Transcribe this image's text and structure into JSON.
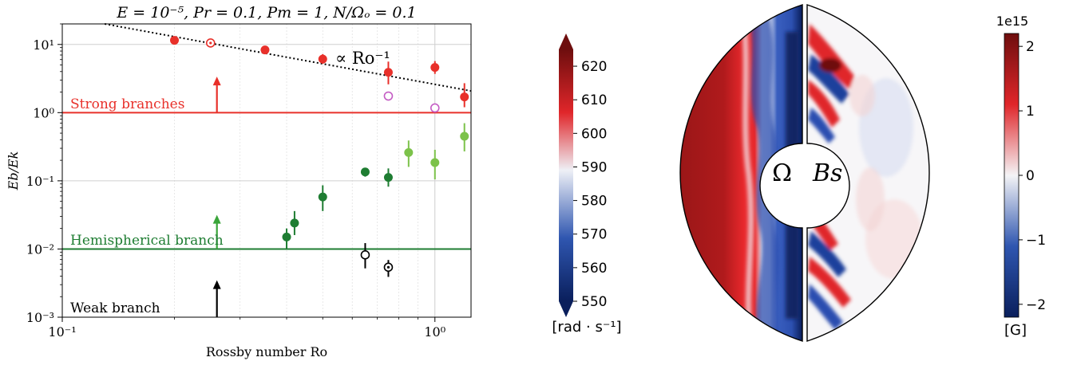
{
  "chart_data": [
    {
      "type": "scatter",
      "title": "E = 10⁻⁵, Pr = 0.1, Pm = 1, N/Ωₒ = 0.1",
      "xlabel": "Rossby number Ro",
      "ylabel": "Eb/Ek",
      "xscale": "log",
      "yscale": "log",
      "xlim": [
        0.1,
        1.25
      ],
      "ylim": [
        0.001,
        20
      ],
      "grid": true,
      "xticks": [
        {
          "value": 0.1,
          "label": "10⁻¹"
        },
        {
          "value": 1,
          "label": "10⁰"
        }
      ],
      "yticks": [
        {
          "value": 0.001,
          "label": "10⁻³"
        },
        {
          "value": 0.01,
          "label": "10⁻²"
        },
        {
          "value": 0.1,
          "label": "10⁻¹"
        },
        {
          "value": 1,
          "label": "10⁰"
        },
        {
          "value": 10,
          "label": "10¹"
        }
      ],
      "series": [
        {
          "name": "Strong branches",
          "color": "#e8302a",
          "marker": "filled",
          "points": [
            {
              "x": 0.2,
              "y": 11.5
            },
            {
              "x": 0.35,
              "y": 8.3
            },
            {
              "x": 0.5,
              "y": 6.1
            },
            {
              "x": 0.75,
              "y": 3.9
            },
            {
              "x": 1.0,
              "y": 4.6
            },
            {
              "x": 1.2,
              "y": 1.7
            }
          ],
          "errors": [
            [
              0.2,
              0.2
            ],
            [
              0.25,
              0.3
            ],
            [
              0.9,
              1.1
            ],
            [
              1.3,
              1.7
            ],
            [
              0.9,
              1.1
            ],
            [
              0.5,
              1.0
            ]
          ]
        },
        {
          "color": "#e8302a",
          "marker": "open-center-dot",
          "points": [
            {
              "x": 0.25,
              "y": 10.5
            }
          ],
          "errors": [
            [
              0.5,
              0.5
            ]
          ]
        },
        {
          "color": "#c45cc4",
          "marker": "open",
          "points": [
            {
              "x": 0.75,
              "y": 1.75
            },
            {
              "x": 1.0,
              "y": 1.17
            }
          ],
          "errors": [
            [
              0,
              0
            ],
            [
              0,
              0
            ]
          ]
        },
        {
          "name": "Hemispherical branch",
          "color": "#1e7d32",
          "marker": "filled",
          "points": [
            {
              "x": 0.4,
              "y": 0.015
            },
            {
              "x": 0.42,
              "y": 0.024
            },
            {
              "x": 0.5,
              "y": 0.058
            },
            {
              "x": 0.65,
              "y": 0.135
            },
            {
              "x": 0.75,
              "y": 0.112
            }
          ],
          "errors": [
            [
              0.005,
              0.005
            ],
            [
              0.008,
              0.012
            ],
            [
              0.022,
              0.028
            ],
            [
              0.02,
              0.02
            ],
            [
              0.03,
              0.04
            ]
          ]
        },
        {
          "color": "#7cc24a",
          "marker": "filled",
          "points": [
            {
              "x": 0.85,
              "y": 0.26
            },
            {
              "x": 1.0,
              "y": 0.185
            },
            {
              "x": 1.2,
              "y": 0.45
            }
          ],
          "errors": [
            [
              0.1,
              0.13
            ],
            [
              0.08,
              0.1
            ],
            [
              0.18,
              0.25
            ]
          ]
        },
        {
          "name": "Weak branch",
          "color": "#000000",
          "marker": "open",
          "points": [
            {
              "x": 0.65,
              "y": 0.0082
            }
          ],
          "errors": [
            [
              0.003,
              0.004
            ]
          ]
        },
        {
          "color": "#000000",
          "marker": "open-center-dot",
          "points": [
            {
              "x": 0.75,
              "y": 0.0054
            }
          ],
          "errors": [
            [
              0.0015,
              0.0015
            ]
          ]
        }
      ],
      "hlines": [
        {
          "y": 1.0,
          "color": "#e8302a",
          "label": "Strong branches"
        },
        {
          "y": 0.01,
          "color": "#1e7d32",
          "label": "Hemispherical branch"
        }
      ],
      "branch_arrows": [
        {
          "x": 0.26,
          "from": 1.0,
          "to": 3.2,
          "color": "#e8302a"
        },
        {
          "x": 0.26,
          "from": 0.01,
          "to": 0.03,
          "color": "#3aa53a"
        },
        {
          "x": 0.26,
          "from": 0.001,
          "to": 0.0033,
          "color": "#000000"
        }
      ],
      "fit_line": {
        "label": "∝ Ro⁻¹",
        "color": "#000000",
        "style": "dotted",
        "x": [
          0.13,
          1.25
        ],
        "amplitude": 2.6
      },
      "branch_label": {
        "text": "Weak branch",
        "color": "#000000"
      }
    },
    {
      "type": "heatmap",
      "description": "meridional half-disk maps",
      "left_field": "Ω",
      "right_field": "Bs",
      "colorbars": [
        {
          "unit": "[rad · s⁻¹]",
          "min": 550,
          "max": 625,
          "ticks": [
            550,
            560,
            570,
            580,
            590,
            600,
            610,
            620
          ],
          "colors": [
            "#0a1f5c",
            "#2f56b0",
            "#eef0f6",
            "#e0262a",
            "#6e0e0e"
          ]
        },
        {
          "unit": "[G]",
          "scale_label": "1e15",
          "min": -2.2,
          "max": 2.2,
          "ticks": [
            -2,
            -1,
            0,
            1,
            2
          ],
          "colors": [
            "#0a1f5c",
            "#2f56b0",
            "#f4f4f6",
            "#e0262a",
            "#6e0e0e"
          ]
        }
      ]
    }
  ]
}
